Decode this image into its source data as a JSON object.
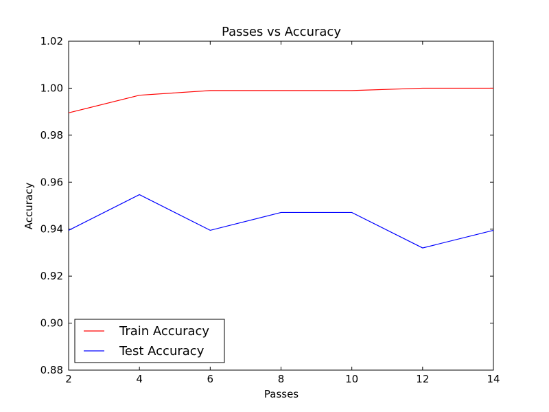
{
  "chart_data": {
    "type": "line",
    "title": "Passes vs Accuracy",
    "xlabel": "Passes",
    "ylabel": "Accuracy",
    "xlim": [
      2,
      14
    ],
    "ylim": [
      0.88,
      1.02
    ],
    "xticks": [
      "2",
      "4",
      "6",
      "8",
      "10",
      "12",
      "14"
    ],
    "yticks": [
      "0.88",
      "0.90",
      "0.92",
      "0.94",
      "0.96",
      "0.98",
      "1.00",
      "1.02"
    ],
    "x": [
      2,
      4,
      6,
      8,
      10,
      12,
      14
    ],
    "series": [
      {
        "name": "Train Accuracy",
        "color": "#ff0000",
        "values": [
          0.9895,
          0.997,
          0.999,
          0.999,
          0.999,
          1.0,
          1.0
        ]
      },
      {
        "name": "Test Accuracy",
        "color": "#0000ff",
        "values": [
          0.9395,
          0.9547,
          0.9395,
          0.9471,
          0.9471,
          0.932,
          0.9395
        ]
      }
    ],
    "grid": false,
    "legend_position": "lower-left"
  }
}
